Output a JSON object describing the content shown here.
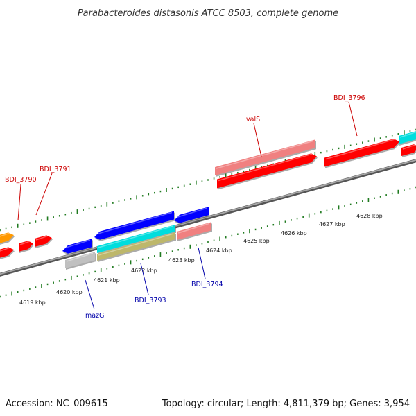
{
  "title": "Parabacteroides distasonis ATCC 8503, complete genome",
  "footer": {
    "accession": "Accession: NC_009615",
    "stats": "Topology: circular; Length: 4,811,379 bp; Genes: 3,954"
  },
  "colors": {
    "backbone": "#7a7a7a",
    "tick": "#1f7a1f",
    "forward_label": "#cc0000",
    "reverse_label": "#0000aa",
    "red": "#ff0000",
    "salmon": "#f08080",
    "blue": "#0000ff",
    "cyan": "#00dddd",
    "khaki": "#bdb76b",
    "gray": "#c0c0c0",
    "orange": "#ff9900"
  },
  "kbp_labels": [
    "4619 kbp",
    "4620 kbp",
    "4621 kbp",
    "4622 kbp",
    "4623 kbp",
    "4624 kbp",
    "4625 kbp",
    "4626 kbp",
    "4627 kbp",
    "4628 kbp"
  ],
  "gene_labels": {
    "bdi_3790": "BDI_3790",
    "bdi_3791": "BDI_3791",
    "vals": "valS",
    "bdi_3796": "BDI_3796",
    "mazg": "mazG",
    "bdi_3793": "BDI_3793",
    "bdi_3794": "BDI_3794"
  }
}
